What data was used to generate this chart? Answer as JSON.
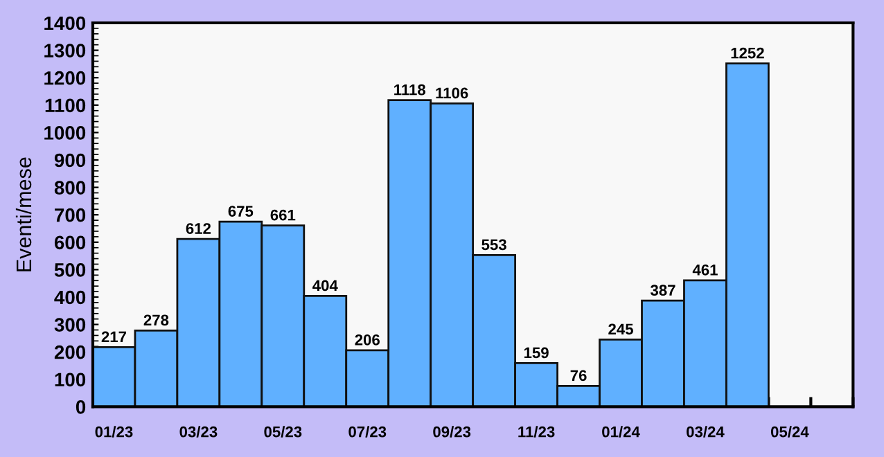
{
  "chart_data": {
    "type": "bar",
    "ylabel": "Eventi/mese",
    "categories": [
      "01/23",
      null,
      "03/23",
      null,
      "05/23",
      null,
      "07/23",
      null,
      "09/23",
      null,
      "11/23",
      null,
      "01/24",
      null,
      "03/24",
      null,
      "05/24",
      null
    ],
    "values": [
      217,
      278,
      612,
      675,
      661,
      404,
      206,
      1118,
      1106,
      553,
      159,
      76,
      245,
      387,
      461,
      1252,
      null,
      null
    ],
    "color": "#60b0ff",
    "data_labels": true,
    "grid": false,
    "legend": false,
    "ylim": [
      0,
      1400
    ],
    "yticks": [
      0,
      100,
      200,
      300,
      400,
      500,
      600,
      700,
      800,
      900,
      1000,
      1100,
      1200,
      1300,
      1400
    ]
  }
}
